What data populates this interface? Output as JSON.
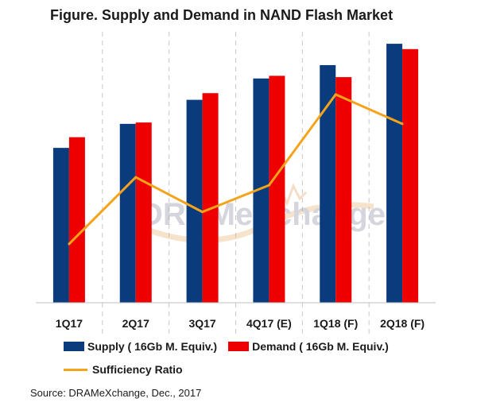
{
  "chart_data": {
    "type": "bar",
    "title": "Figure. Supply and Demand in NAND Flash Market",
    "categories": [
      "1Q17",
      "2Q17",
      "3Q17",
      "4Q17 (E)",
      "1Q18 (F)",
      "2Q18 (F)"
    ],
    "series": [
      {
        "name": "Supply ( 16Gb M. Equiv.)",
        "kind": "bar",
        "color": "#0a3b7c",
        "values": [
          58,
          67,
          76,
          84,
          89,
          97
        ]
      },
      {
        "name": "Demand ( 16Gb M. Equiv.)",
        "kind": "bar",
        "color": "#ee0000",
        "values": [
          62,
          67.5,
          78.5,
          85,
          84.5,
          95
        ]
      },
      {
        "name": "Sufficiency Ratio",
        "kind": "line",
        "color": "#f5a31a",
        "values": [
          22,
          47,
          34,
          44,
          78,
          67
        ]
      }
    ],
    "ylim": [
      0,
      100
    ],
    "xlabel": "",
    "ylabel": "",
    "grid": false,
    "legend": "bottom"
  },
  "watermark": "DRAMeXchange",
  "source": "Source: DRAMeXchange, Dec., 2017"
}
